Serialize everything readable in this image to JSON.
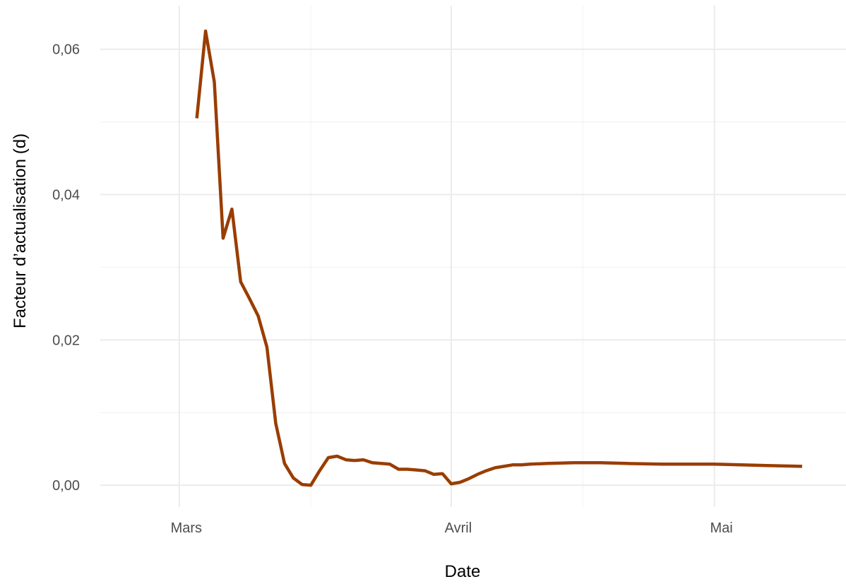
{
  "chart_data": {
    "type": "line",
    "xlabel": "Date",
    "ylabel": "Facteur d’actualisation (d)",
    "x_ticks": [
      {
        "date": "2020-03-01",
        "label": "Mars"
      },
      {
        "date": "2020-04-01",
        "label": "Avril"
      },
      {
        "date": "2020-05-01",
        "label": "Mai"
      }
    ],
    "x_minor_ticks": [
      "2020-03-16",
      "2020-04-16"
    ],
    "xlim": [
      "2020-02-21",
      "2020-05-16"
    ],
    "y_ticks": [
      {
        "value": 0.0,
        "label": "0,00"
      },
      {
        "value": 0.02,
        "label": "0,02"
      },
      {
        "value": 0.04,
        "label": "0,04"
      },
      {
        "value": 0.06,
        "label": "0,06"
      }
    ],
    "y_minor_ticks": [
      0.01,
      0.03,
      0.05
    ],
    "ylim": [
      -0.003,
      0.066
    ],
    "grid": true,
    "line_color": "#993d00",
    "series": [
      {
        "x": [
          "2020-03-03",
          "2020-03-04",
          "2020-03-05",
          "2020-03-06",
          "2020-03-07",
          "2020-03-08",
          "2020-03-09",
          "2020-03-10",
          "2020-03-11",
          "2020-03-12",
          "2020-03-13",
          "2020-03-14",
          "2020-03-15",
          "2020-03-16",
          "2020-03-17",
          "2020-03-18",
          "2020-03-19",
          "2020-03-20",
          "2020-03-21",
          "2020-03-22",
          "2020-03-23",
          "2020-03-24",
          "2020-03-25",
          "2020-03-26",
          "2020-03-27",
          "2020-03-28",
          "2020-03-29",
          "2020-03-30",
          "2020-03-31",
          "2020-04-01",
          "2020-04-02",
          "2020-04-03",
          "2020-04-04",
          "2020-04-05",
          "2020-04-06",
          "2020-04-07",
          "2020-04-08",
          "2020-04-09",
          "2020-04-10",
          "2020-04-12",
          "2020-04-15",
          "2020-04-18",
          "2020-04-21",
          "2020-04-25",
          "2020-04-28",
          "2020-05-01",
          "2020-05-04",
          "2020-05-07",
          "2020-05-11"
        ],
        "y": [
          0.0505,
          0.0625,
          0.0555,
          0.034,
          0.038,
          0.028,
          0.0257,
          0.0233,
          0.019,
          0.0085,
          0.003,
          0.001,
          0.0001,
          0.0,
          0.002,
          0.0038,
          0.004,
          0.0035,
          0.0034,
          0.0035,
          0.0031,
          0.003,
          0.0029,
          0.0022,
          0.0022,
          0.0021,
          0.002,
          0.0015,
          0.0016,
          0.0002,
          0.0004,
          0.0009,
          0.0015,
          0.002,
          0.0024,
          0.0026,
          0.0028,
          0.0028,
          0.0029,
          0.003,
          0.0031,
          0.0031,
          0.003,
          0.0029,
          0.0029,
          0.0029,
          0.0028,
          0.0027,
          0.0026
        ]
      }
    ]
  }
}
